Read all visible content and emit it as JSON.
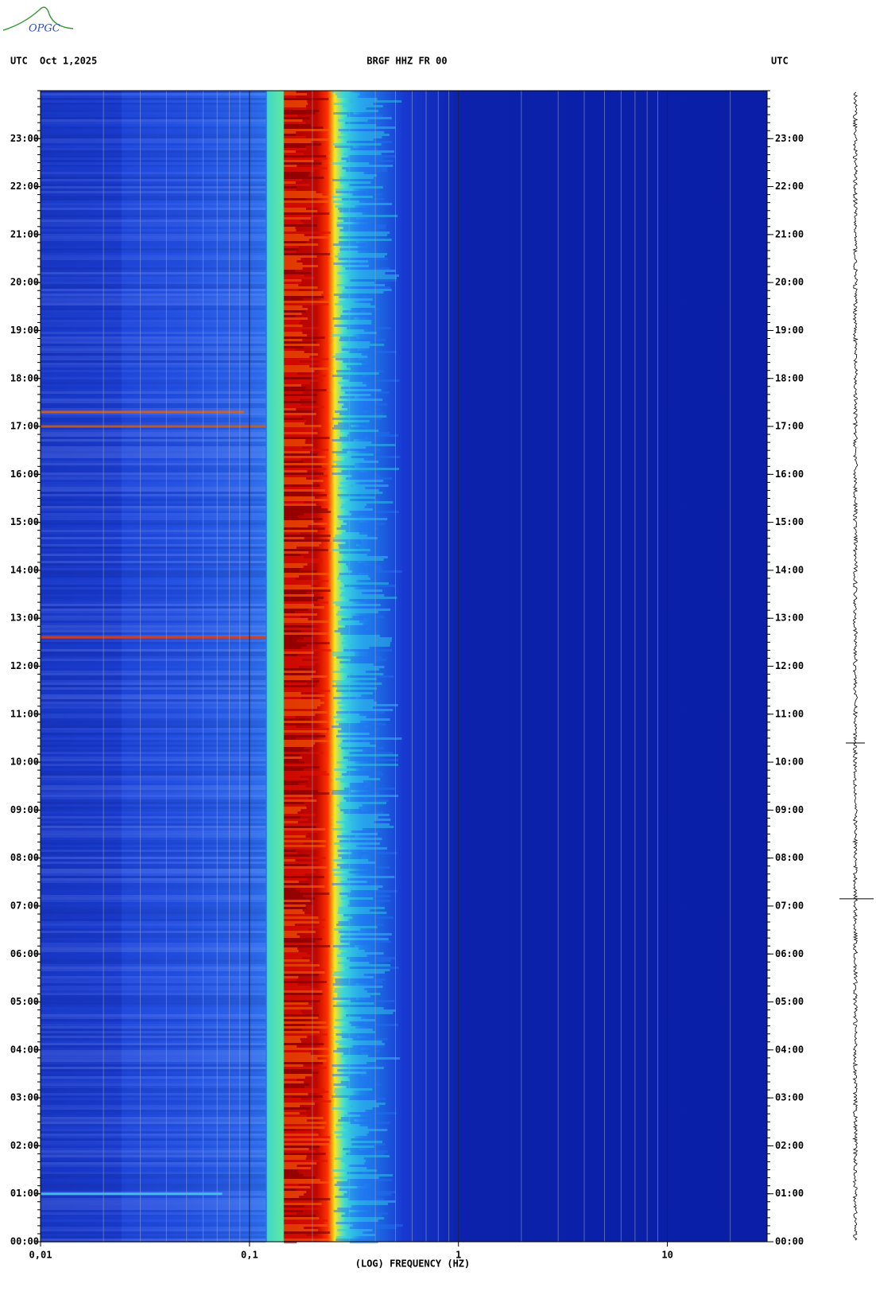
{
  "logo": "OPGC",
  "chart_data": {
    "type": "spectrogram",
    "title": "BRGF HHZ FR 00",
    "date": "Oct 1,2025",
    "time_zone": "UTC",
    "x_label": "(LOG) FREQUENCY (HZ)",
    "xscale": "log",
    "xlim": [
      0.01,
      30
    ],
    "xticks": [
      {
        "value": 0.01,
        "label": "0,01"
      },
      {
        "value": 0.1,
        "label": "0,1"
      },
      1,
      10
    ],
    "ylim": [
      0,
      24
    ],
    "yticks": [
      {
        "value": 0,
        "label": "00:00"
      },
      {
        "value": 1,
        "label": "01:00"
      },
      {
        "value": 2,
        "label": "02:00"
      },
      {
        "value": 3,
        "label": "03:00"
      },
      {
        "value": 4,
        "label": "04:00"
      },
      {
        "value": 5,
        "label": "05:00"
      },
      {
        "value": 6,
        "label": "06:00"
      },
      {
        "value": 7,
        "label": "07:00"
      },
      {
        "value": 8,
        "label": "08:00"
      },
      {
        "value": 9,
        "label": "09:00"
      },
      {
        "value": 10,
        "label": "10:00"
      },
      {
        "value": 11,
        "label": "11:00"
      },
      {
        "value": 12,
        "label": "12:00"
      },
      {
        "value": 13,
        "label": "13:00"
      },
      {
        "value": 14,
        "label": "14:00"
      },
      {
        "value": 15,
        "label": "15:00"
      },
      {
        "value": 16,
        "label": "16:00"
      },
      {
        "value": 17,
        "label": "17:00"
      },
      {
        "value": 18,
        "label": "18:00"
      },
      {
        "value": 19,
        "label": "19:00"
      },
      {
        "value": 20,
        "label": "20:00"
      },
      {
        "value": 21,
        "label": "21:00"
      },
      {
        "value": 22,
        "label": "22:00"
      },
      {
        "value": 23,
        "label": "23:00"
      }
    ]
  }
}
